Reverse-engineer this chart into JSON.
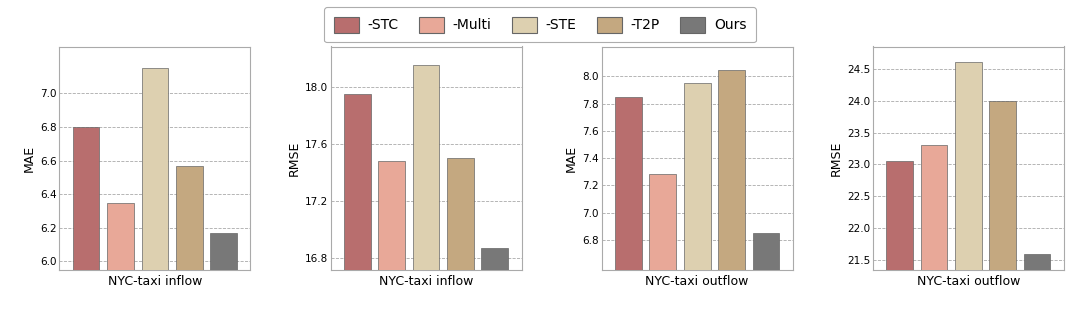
{
  "groups": [
    {
      "title": "NYC-taxi inflow",
      "ylabel": "MAE",
      "values": [
        6.8,
        6.35,
        7.15,
        6.57,
        6.17
      ],
      "ylim": [
        5.95,
        7.28
      ],
      "yticks": [
        6.0,
        6.2,
        6.4,
        6.6,
        6.8,
        7.0
      ],
      "ytick_labels": [
        "6.0",
        "6.2",
        "6.4",
        "6.6",
        "6.8",
        "7.0"
      ]
    },
    {
      "title": "NYC-taxi inflow",
      "ylabel": "RMSE",
      "values": [
        17.95,
        17.48,
        18.15,
        17.5,
        16.87
      ],
      "ylim": [
        16.72,
        18.28
      ],
      "yticks": [
        16.8,
        17.2,
        17.6,
        18.0
      ],
      "ytick_labels": [
        "16.8",
        "17.2",
        "17.6",
        "18.0"
      ]
    },
    {
      "title": "NYC-taxi outflow",
      "ylabel": "MAE",
      "values": [
        7.85,
        7.28,
        7.95,
        8.05,
        6.85
      ],
      "ylim": [
        6.58,
        8.22
      ],
      "yticks": [
        6.8,
        7.0,
        7.2,
        7.4,
        7.6,
        7.8,
        8.0
      ],
      "ytick_labels": [
        "6.8",
        "7.0",
        "7.2",
        "7.4",
        "7.6",
        "7.8",
        "8.0"
      ]
    },
    {
      "title": "NYC-taxi outflow",
      "ylabel": "RMSE",
      "values": [
        23.05,
        23.3,
        24.6,
        24.0,
        21.6
      ],
      "ylim": [
        21.35,
        24.85
      ],
      "yticks": [
        21.5,
        22.0,
        22.5,
        23.0,
        23.5,
        24.0,
        24.5
      ],
      "ytick_labels": [
        "21.5",
        "22.0",
        "22.5",
        "23.0",
        "23.5",
        "24.0",
        "24.5"
      ]
    }
  ],
  "bar_colors": [
    "#b86e6e",
    "#e8a898",
    "#ddd0b0",
    "#c4a880",
    "#787878"
  ],
  "legend_labels": [
    "-STC",
    "-Multi",
    "-STE",
    "-T2P",
    "Ours"
  ],
  "bar_width": 0.14,
  "background_color": "#ffffff",
  "grid_color": "#aaaaaa",
  "legend_edgecolor": "#999999"
}
